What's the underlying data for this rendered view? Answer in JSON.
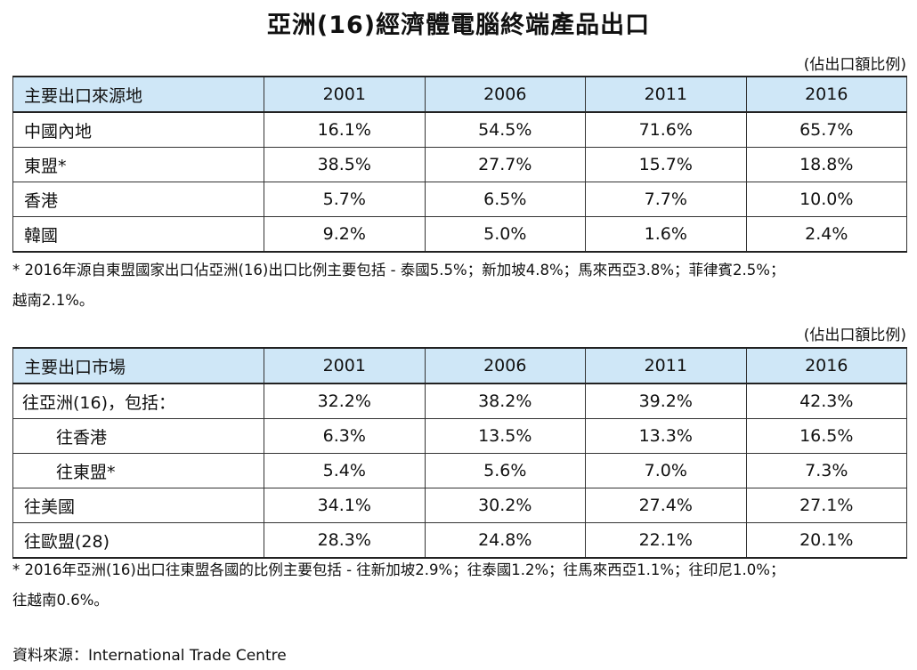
{
  "title": "亞洲(16)經濟體電腦終端產品出口",
  "unit_label": "(佔出口額比例)",
  "table1": {
    "headers": [
      "主要出口來源地",
      "2001",
      "2006",
      "2011",
      "2016"
    ],
    "rows": [
      {
        "label": "中國內地",
        "values": [
          "16.1%",
          "54.5%",
          "71.6%",
          "65.7%"
        ]
      },
      {
        "label": "東盟*",
        "values": [
          "38.5%",
          "27.7%",
          "15.7%",
          "18.8%"
        ]
      },
      {
        "label": "香港",
        "values": [
          "5.7%",
          "6.5%",
          "7.7%",
          "10.0%"
        ]
      },
      {
        "label": "韓國",
        "values": [
          "9.2%",
          "5.0%",
          "1.6%",
          "2.4%"
        ]
      }
    ],
    "note_line1": "* 2016年源自東盟國家出口佔亞洲(16)出口比例主要包括 - 泰國5.5%；新加坡4.8%；馬來西亞3.8%；菲律賓2.5%；",
    "note_line2": "越南2.1%。"
  },
  "table2": {
    "headers": [
      "主要出口市場",
      "2001",
      "2006",
      "2011",
      "2016"
    ],
    "rows": [
      {
        "label": "往亞洲(16)，包括：",
        "values": [
          "32.2%",
          "38.2%",
          "39.2%",
          "42.3%"
        ]
      },
      {
        "label": "往香港",
        "values": [
          "6.3%",
          "13.5%",
          "13.3%",
          "16.5%"
        ]
      },
      {
        "label": "往東盟*",
        "values": [
          "5.4%",
          "5.6%",
          "7.0%",
          "7.3%"
        ]
      },
      {
        "label": "往美國",
        "values": [
          "34.1%",
          "30.2%",
          "27.4%",
          "27.1%"
        ]
      },
      {
        "label": "往歐盟(28)",
        "values": [
          "28.3%",
          "24.8%",
          "22.1%",
          "20.1%"
        ]
      }
    ],
    "note_line1": "* 2016年亞洲(16)出口往東盟各國的比例主要包括 - 往新加坡2.9%；往泰國1.2%；往馬來西亞1.1%；往印尼1.0%；",
    "note_line2": "往越南0.6%。"
  },
  "source": "資料來源：International Trade Centre"
}
